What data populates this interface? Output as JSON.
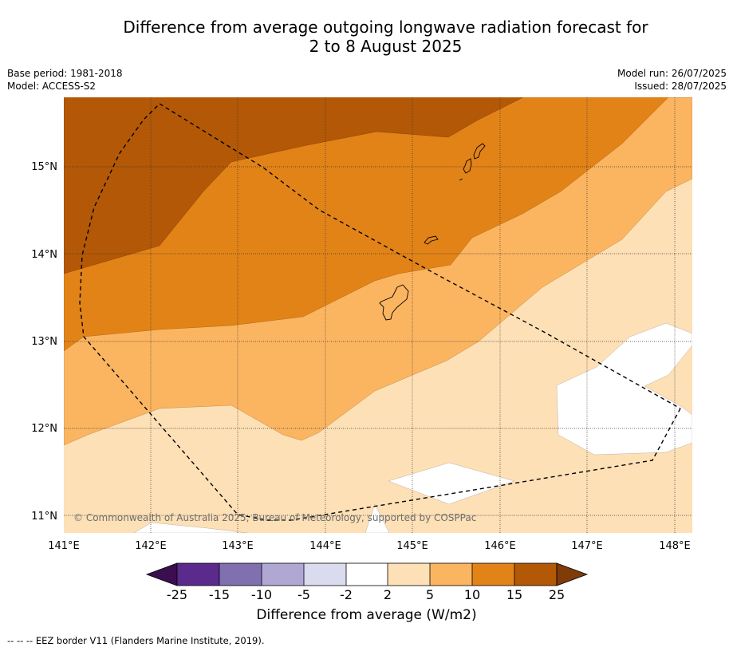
{
  "title_line1": "Difference from average outgoing longwave radiation forecast for",
  "title_line2": "2 to 8 August 2025",
  "base_period": "Base period: 1981-2018",
  "model": "Model: ACCESS-S2",
  "model_run": "Model run: 26/07/2025",
  "issued": "Issued: 28/07/2025",
  "x_ticks": [
    "141°E",
    "142°E",
    "143°E",
    "144°E",
    "145°E",
    "146°E",
    "147°E",
    "148°E"
  ],
  "y_ticks": [
    "15°N",
    "14°N",
    "13°N",
    "12°N",
    "11°N"
  ],
  "copyright": "© Commonwealth of Australia 2025, Bureau of Meteorology, supported by COSPPac",
  "colorbar": {
    "ticks": [
      "-25",
      "-15",
      "-10",
      "-5",
      "-2",
      "2",
      "5",
      "10",
      "15",
      "25"
    ],
    "title": "Difference from average (W/m2)",
    "colors": {
      "lt_-25": "#3b0f4f",
      "-25_-15": "#5a2a8c",
      "-15_-10": "#8070b0",
      "-10_-5": "#b0a8d3",
      "-5_-2": "#dadbee",
      "-2_2": "#ffffff",
      "2_5": "#fde0b6",
      "5_10": "#fbb561",
      "10_15": "#e28318",
      "15_25": "#b35806",
      "gt_25": "#7f3b08"
    }
  },
  "footer_legend": "--  --  -- EEZ border V11 (Flanders Marine Institute, 2019)."
}
